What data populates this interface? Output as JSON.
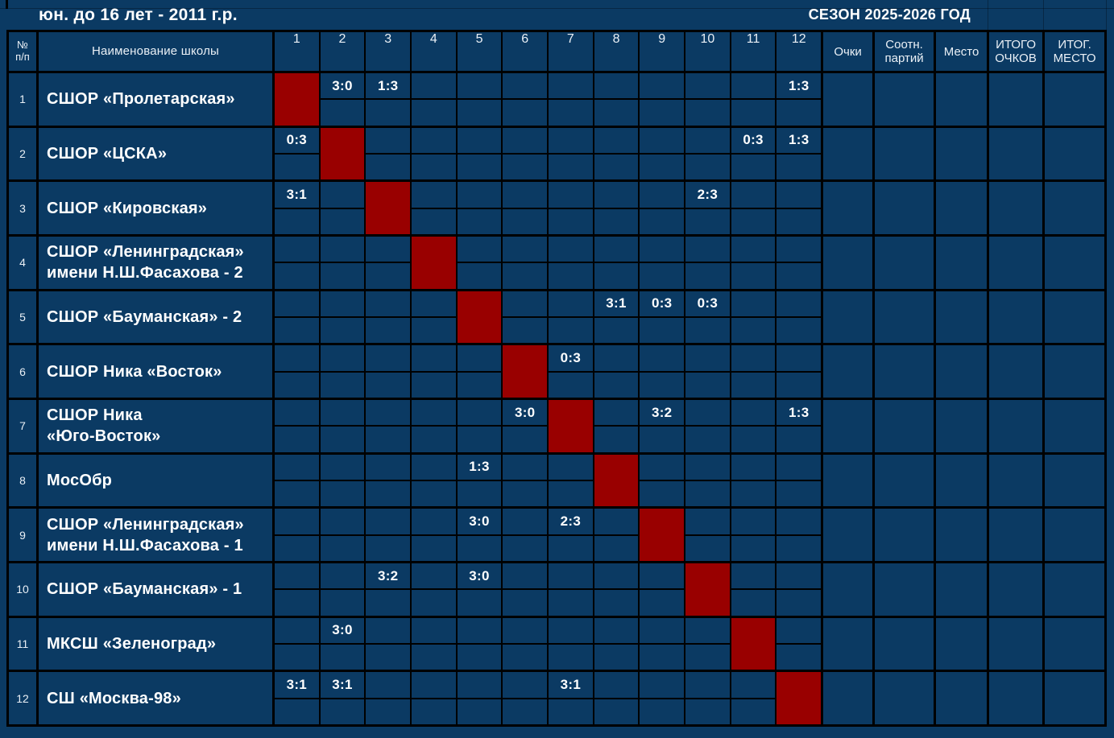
{
  "page_title": "юн. до 16 лет - 2011 г.р.",
  "season_title": "СЕЗОН 2025-2026 ГОД",
  "colors": {
    "background": "#0b3a63",
    "diagonal_red": "#990000",
    "grid_line": "#000000",
    "text_primary": "#ffffff",
    "text_secondary": "#eaf0f6"
  },
  "table": {
    "header": {
      "num_label": "№\nп/п",
      "name_label": "Наименование школы",
      "round_labels": [
        "1",
        "2",
        "3",
        "4",
        "5",
        "6",
        "7",
        "8",
        "9",
        "10",
        "11",
        "12"
      ],
      "points_label": "Очки",
      "ratio_label": "Соотн.\nпартий",
      "place_label": "Место",
      "total_points_label": "ИТОГО\nОЧКОВ",
      "final_place_label": "ИТОГ.\nМЕСТО"
    },
    "teams": [
      {
        "num": "1",
        "name": "СШОР «Пролетарская»",
        "results": [
          "",
          "3:0",
          "1:3",
          "",
          "",
          "",
          "",
          "",
          "",
          "",
          "",
          "1:3"
        ],
        "points": "",
        "ratio": "",
        "place": "",
        "total_points": "",
        "final_place": ""
      },
      {
        "num": "2",
        "name": "СШОР «ЦСКА»",
        "results": [
          "0:3",
          "",
          "",
          "",
          "",
          "",
          "",
          "",
          "",
          "",
          "0:3",
          "1:3"
        ],
        "points": "",
        "ratio": "",
        "place": "",
        "total_points": "",
        "final_place": ""
      },
      {
        "num": "3",
        "name": "СШОР «Кировская»",
        "results": [
          "3:1",
          "",
          "",
          "",
          "",
          "",
          "",
          "",
          "",
          "2:3",
          "",
          ""
        ],
        "points": "",
        "ratio": "",
        "place": "",
        "total_points": "",
        "final_place": ""
      },
      {
        "num": "4",
        "name": "СШОР «Ленинградская»\nимени Н.Ш.Фасахова - 2",
        "results": [
          "",
          "",
          "",
          "",
          "",
          "",
          "",
          "",
          "",
          "",
          "",
          ""
        ],
        "points": "",
        "ratio": "",
        "place": "",
        "total_points": "",
        "final_place": ""
      },
      {
        "num": "5",
        "name": "СШОР «Бауманская» - 2",
        "results": [
          "",
          "",
          "",
          "",
          "",
          "",
          "",
          "3:1",
          "0:3",
          "0:3",
          "",
          ""
        ],
        "points": "",
        "ratio": "",
        "place": "",
        "total_points": "",
        "final_place": ""
      },
      {
        "num": "6",
        "name": "СШОР Ника «Восток»",
        "results": [
          "",
          "",
          "",
          "",
          "",
          "",
          "0:3",
          "",
          "",
          "",
          "",
          ""
        ],
        "points": "",
        "ratio": "",
        "place": "",
        "total_points": "",
        "final_place": ""
      },
      {
        "num": "7",
        "name": "СШОР Ника\n«Юго-Восток»",
        "results": [
          "",
          "",
          "",
          "",
          "",
          "3:0",
          "",
          "",
          "3:2",
          "",
          "",
          "1:3"
        ],
        "points": "",
        "ratio": "",
        "place": "",
        "total_points": "",
        "final_place": ""
      },
      {
        "num": "8",
        "name": "МосОбр",
        "results": [
          "",
          "",
          "",
          "",
          "1:3",
          "",
          "",
          "",
          "",
          "",
          "",
          ""
        ],
        "points": "",
        "ratio": "",
        "place": "",
        "total_points": "",
        "final_place": ""
      },
      {
        "num": "9",
        "name": "СШОР «Ленинградская»\nимени Н.Ш.Фасахова - 1",
        "results": [
          "",
          "",
          "",
          "",
          "3:0",
          "",
          "2:3",
          "",
          "",
          "",
          "",
          ""
        ],
        "points": "",
        "ratio": "",
        "place": "",
        "total_points": "",
        "final_place": ""
      },
      {
        "num": "10",
        "name": "СШОР «Бауманская» - 1",
        "results": [
          "",
          "",
          "3:2",
          "",
          "3:0",
          "",
          "",
          "",
          "",
          "",
          "",
          ""
        ],
        "points": "",
        "ratio": "",
        "place": "",
        "total_points": "",
        "final_place": ""
      },
      {
        "num": "11",
        "name": "МКСШ «Зеленоград»",
        "results": [
          "",
          "3:0",
          "",
          "",
          "",
          "",
          "",
          "",
          "",
          "",
          "",
          ""
        ],
        "points": "",
        "ratio": "",
        "place": "",
        "total_points": "",
        "final_place": ""
      },
      {
        "num": "12",
        "name": "СШ «Москва-98»",
        "results": [
          "3:1",
          "3:1",
          "",
          "",
          "",
          "",
          "3:1",
          "",
          "",
          "",
          "",
          ""
        ],
        "points": "",
        "ratio": "",
        "place": "",
        "total_points": "",
        "final_place": ""
      }
    ]
  }
}
